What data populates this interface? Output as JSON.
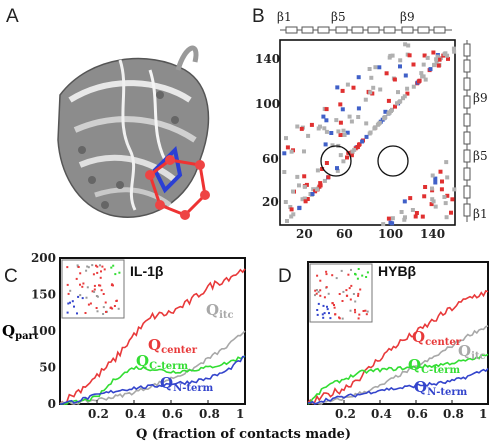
{
  "panel_labels": {
    "a": "A",
    "b": "B",
    "c": "C",
    "d": "D"
  },
  "contact_map": {
    "x_ticks": [
      "20",
      "60",
      "100",
      "140"
    ],
    "y_ticks": [
      "20",
      "60",
      "100",
      "140"
    ],
    "beta_labels": [
      "β1",
      "β5",
      "β9"
    ],
    "colors": {
      "native": "#b0b0b0",
      "center": "#e03030",
      "n_term": "#4060c8"
    }
  },
  "axis_labels": {
    "y_main": "Q",
    "y_sub": "part",
    "x": "Q (fraction of contacts made)"
  },
  "series_labels": {
    "center": {
      "main": "Q",
      "sub": "center"
    },
    "itc": {
      "main": "Q",
      "sub": "itc"
    },
    "c_term": {
      "main": "Q",
      "sub": "C-term"
    },
    "n_term": {
      "main": "Q",
      "sub": "N-term"
    }
  },
  "colors": {
    "center": "#e8393a",
    "itc": "#a8a8a8",
    "c_term": "#33dd33",
    "n_term": "#3344cc"
  },
  "chart_data": [
    {
      "type": "line",
      "title": "IL-1β",
      "ylabel": "Qpart",
      "xlabel": "Q (fraction of contacts made)",
      "xlim": [
        0,
        1
      ],
      "ylim": [
        0,
        200
      ],
      "x_ticks": [
        "0.2",
        "0.4",
        "0.6",
        "0.8",
        "1"
      ],
      "y_ticks": [
        "0",
        "50",
        "100",
        "150",
        "200"
      ],
      "x": [
        0,
        0.1,
        0.2,
        0.3,
        0.4,
        0.5,
        0.6,
        0.7,
        0.8,
        0.9,
        1.0
      ],
      "series": [
        {
          "name": "Qcenter",
          "key": "center",
          "values": [
            0,
            18,
            38,
            62,
            95,
            120,
            125,
            140,
            160,
            172,
            185
          ]
        },
        {
          "name": "Qitc",
          "key": "itc",
          "values": [
            0,
            2,
            6,
            10,
            16,
            25,
            35,
            45,
            62,
            78,
            100
          ]
        },
        {
          "name": "QC-term",
          "key": "c_term",
          "values": [
            0,
            3,
            9,
            35,
            50,
            48,
            44,
            46,
            50,
            56,
            66
          ]
        },
        {
          "name": "QN-term",
          "key": "n_term",
          "values": [
            0,
            5,
            12,
            18,
            22,
            24,
            28,
            30,
            35,
            45,
            65
          ]
        }
      ]
    },
    {
      "type": "line",
      "title": "HYBβ",
      "ylabel": "Qpart",
      "xlabel": "Q (fraction of contacts made)",
      "xlim": [
        0,
        1
      ],
      "ylim": [
        0,
        200
      ],
      "x_ticks": [
        "0.2",
        "0.4",
        "0.6",
        "0.8",
        "1"
      ],
      "y_ticks": [],
      "x": [
        0,
        0.1,
        0.2,
        0.3,
        0.4,
        0.5,
        0.6,
        0.7,
        0.8,
        0.9,
        1.0
      ],
      "series": [
        {
          "name": "Qcenter",
          "key": "center",
          "values": [
            0,
            12,
            22,
            40,
            65,
            85,
            100,
            118,
            135,
            150,
            158
          ]
        },
        {
          "name": "Qitc",
          "key": "itc",
          "values": [
            0,
            2,
            8,
            16,
            25,
            40,
            52,
            66,
            82,
            98,
            110
          ]
        },
        {
          "name": "QC-term",
          "key": "c_term",
          "values": [
            0,
            25,
            35,
            45,
            48,
            50,
            52,
            54,
            58,
            62,
            70
          ]
        },
        {
          "name": "QN-term",
          "key": "n_term",
          "values": [
            0,
            6,
            10,
            14,
            20,
            22,
            26,
            28,
            32,
            40,
            50
          ]
        }
      ]
    }
  ]
}
